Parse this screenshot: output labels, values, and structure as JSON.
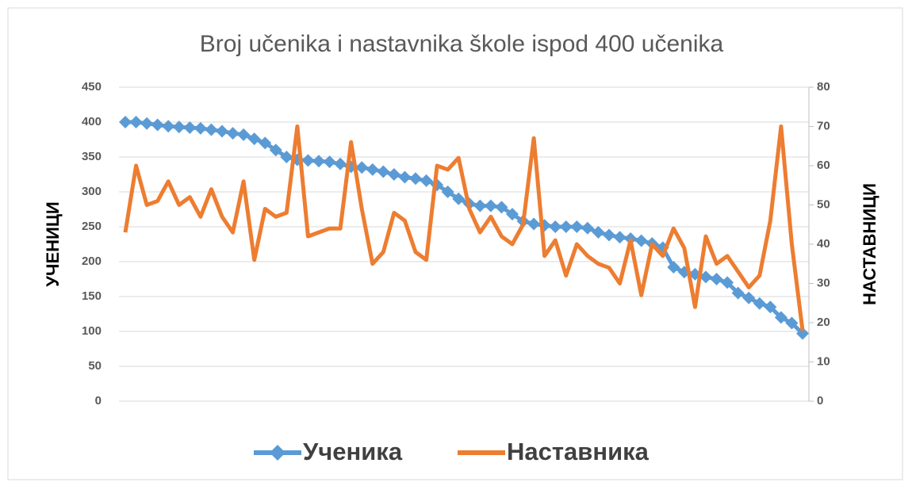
{
  "chart_data": {
    "type": "line",
    "title": "Broj učenika i nastavnika škole ispod  400 učenika",
    "ylabel": "УЧЕНИЦИ",
    "y2label": "НАСТАВНИЦИ",
    "ylim": [
      0,
      450
    ],
    "yticks": [
      0,
      50,
      100,
      150,
      200,
      250,
      300,
      350,
      400,
      450
    ],
    "y2lim": [
      0,
      80
    ],
    "y2ticks": [
      0,
      10,
      20,
      30,
      40,
      50,
      60,
      70,
      80
    ],
    "grid": true,
    "legend": "bottom",
    "series": [
      {
        "name": "Ученика",
        "color": "#5b9bd5",
        "marker": "diamond",
        "values": [
          400,
          400,
          398,
          396,
          394,
          393,
          392,
          391,
          389,
          387,
          384,
          382,
          376,
          370,
          360,
          350,
          346,
          345,
          344,
          343,
          340,
          336,
          335,
          332,
          329,
          325,
          321,
          319,
          316,
          310,
          300,
          290,
          283,
          280,
          280,
          278,
          268,
          258,
          254,
          252,
          250,
          250,
          250,
          248,
          242,
          238,
          235,
          233,
          230,
          226,
          220,
          192,
          185,
          182,
          178,
          175,
          170,
          155,
          148,
          140,
          135,
          120,
          112,
          97
        ]
      },
      {
        "name": "Наставника",
        "color": "#ed7d31",
        "axis": "y2",
        "values": [
          43,
          60,
          50,
          51,
          56,
          50,
          52,
          47,
          54,
          47,
          43,
          56,
          36,
          49,
          47,
          48,
          70,
          42,
          43,
          44,
          44,
          66,
          49,
          35,
          38,
          48,
          46,
          38,
          36,
          60,
          59,
          62,
          49,
          43,
          47,
          42,
          40,
          45,
          67,
          37,
          41,
          32,
          40,
          37,
          35,
          34,
          30,
          41,
          27,
          40,
          37,
          44,
          39,
          24,
          42,
          35,
          37,
          33,
          29,
          32,
          46,
          70,
          40,
          18
        ]
      }
    ]
  }
}
